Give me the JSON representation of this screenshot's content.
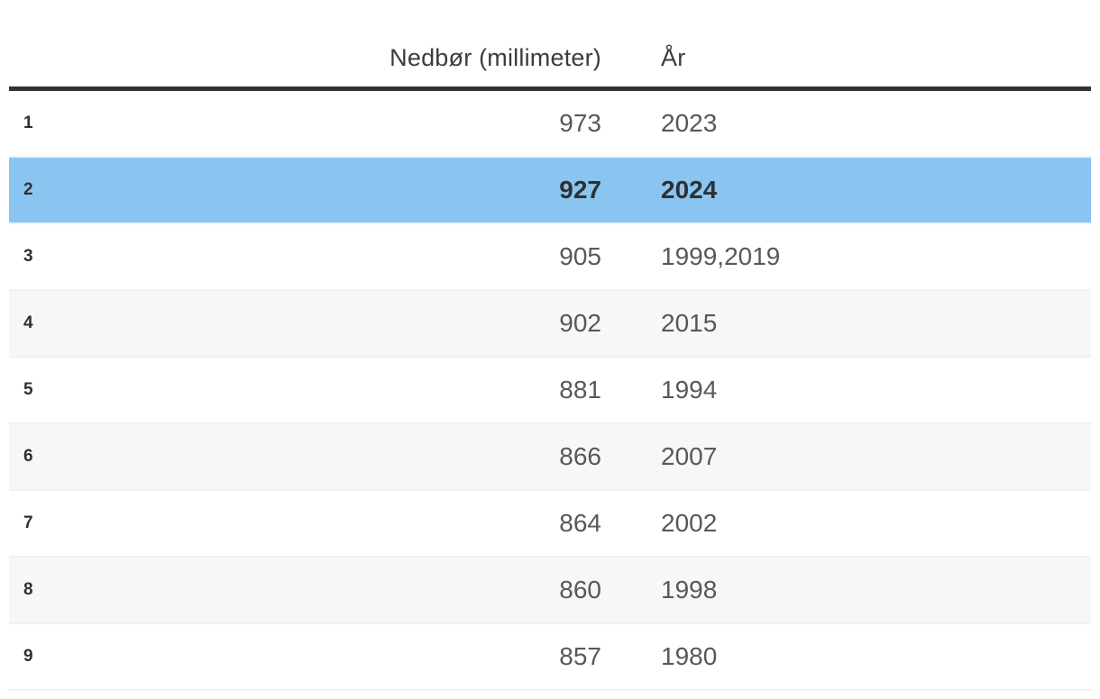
{
  "table": {
    "columns": [
      {
        "label": "Nedbør (millimeter)",
        "align": "right"
      },
      {
        "label": "År",
        "align": "left"
      }
    ],
    "rows": [
      {
        "rank": "1",
        "value": "973",
        "year": "2023",
        "highlighted": false
      },
      {
        "rank": "2",
        "value": "927",
        "year": "2024",
        "highlighted": true
      },
      {
        "rank": "3",
        "value": "905",
        "year": "1999,2019",
        "highlighted": false
      },
      {
        "rank": "4",
        "value": "902",
        "year": "2015",
        "highlighted": false
      },
      {
        "rank": "5",
        "value": "881",
        "year": "1994",
        "highlighted": false
      },
      {
        "rank": "6",
        "value": "866",
        "year": "2007",
        "highlighted": false
      },
      {
        "rank": "7",
        "value": "864",
        "year": "2002",
        "highlighted": false
      },
      {
        "rank": "8",
        "value": "860",
        "year": "1998",
        "highlighted": false
      },
      {
        "rank": "9",
        "value": "857",
        "year": "1980",
        "highlighted": false
      }
    ],
    "colors": {
      "highlight": "#8AC5F1",
      "stripe": "#F7F7F7",
      "header_border": "#333333",
      "text_primary": "#2E3033",
      "text_secondary": "#56585C",
      "row_separator": "#F0F1F2"
    }
  },
  "chart_data": {
    "type": "table",
    "title": "",
    "columns": [
      "rank",
      "Nedbør (millimeter)",
      "År"
    ],
    "rows": [
      [
        1,
        973,
        "2023"
      ],
      [
        2,
        927,
        "2024"
      ],
      [
        3,
        905,
        "1999,2019"
      ],
      [
        4,
        902,
        "2015"
      ],
      [
        5,
        881,
        "1994"
      ],
      [
        6,
        866,
        "2007"
      ],
      [
        7,
        864,
        "2002"
      ],
      [
        8,
        860,
        "1998"
      ],
      [
        9,
        857,
        "1980"
      ]
    ],
    "highlighted_row_rank": 2,
    "layout": {
      "value_column_align": "right",
      "year_column_align": "left",
      "striped": true
    }
  }
}
